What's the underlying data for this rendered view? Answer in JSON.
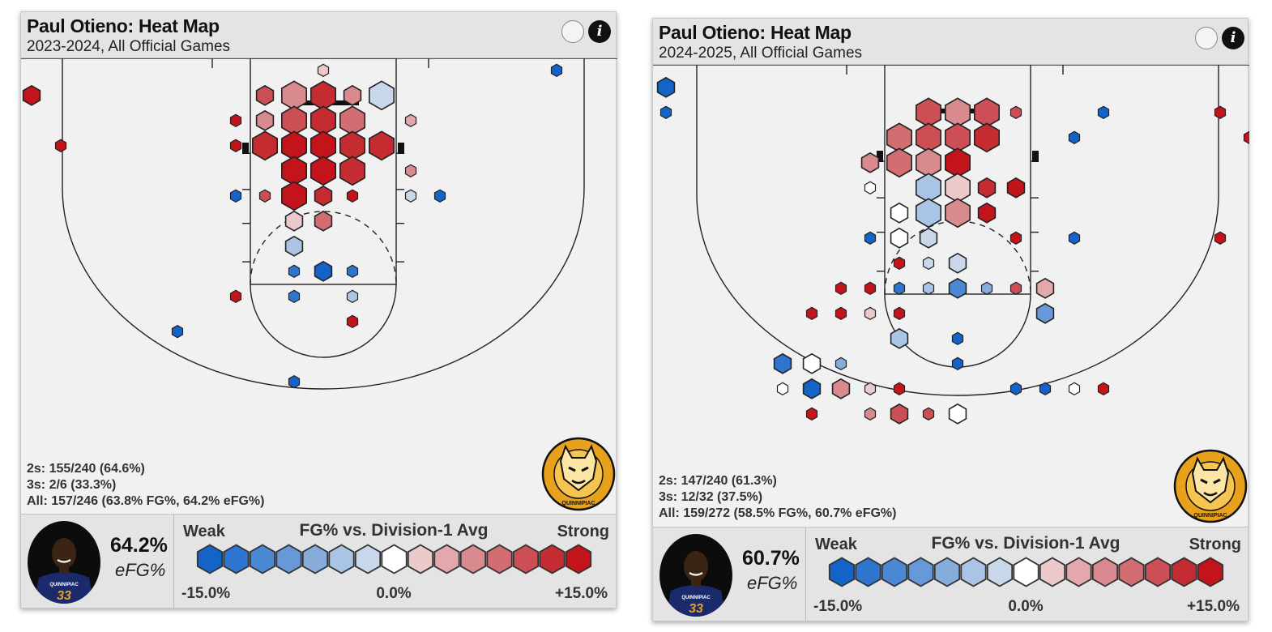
{
  "colors": {
    "scale": [
      "#1463c8",
      "#2d75cf",
      "#4a88d4",
      "#6799d8",
      "#86acdc",
      "#a9c4e4",
      "#c8d8ea",
      "#ffffff",
      "#ecc9cb",
      "#e3a8ac",
      "#d98a8f",
      "#d26d72",
      "#cc4f55",
      "#c52c32",
      "#c4141b"
    ],
    "accent_gold": "#e8a11c",
    "jersey_navy": "#1b2a6b"
  },
  "icons": [
    "help-circle-icon",
    "info-icon",
    "team-logo",
    "player-avatar"
  ],
  "panels": [
    {
      "title": "Paul Otieno: Heat Map",
      "subtitle": "2023-2024, All Official Games",
      "stats": [
        "2s: 155/240 (64.6%)",
        "3s: 2/6 (33.3%)",
        "All: 157/246 (63.8% FG%, 64.2% eFG%)"
      ],
      "efg_value": "64.2%",
      "efg_label": "eFG%",
      "legend": {
        "weak": "Weak",
        "title": "FG% vs. Division-1 Avg",
        "strong": "Strong",
        "min": "-15.0%",
        "mid": "0.0%",
        "max": "+15.0%"
      },
      "jersey_text": "QUINNIPIAC",
      "jersey_number": "33",
      "logo_text": "QUINNIPIAC"
    },
    {
      "title": "Paul Otieno: Heat Map",
      "subtitle": "2024-2025, All Official Games",
      "stats": [
        "2s: 147/240 (61.3%)",
        "3s: 12/32 (37.5%)",
        "All: 159/272 (58.5% FG%, 60.7% eFG%)"
      ],
      "efg_value": "60.7%",
      "efg_label": "eFG%",
      "legend": {
        "weak": "Weak",
        "title": "FG% vs. Division-1 Avg",
        "strong": "Strong",
        "min": "-15.0%",
        "mid": "0.0%",
        "max": "+15.0%"
      },
      "jersey_text": "QUINNIPIAC",
      "jersey_number": "33",
      "logo_text": "QUINNIPIAC"
    }
  ],
  "chart_data": [
    {
      "type": "heatmap",
      "title": "Paul Otieno: Heat Map",
      "subtitle": "2023-2024, All Official Games",
      "color_scale": {
        "min": -15.0,
        "mid": 0.0,
        "max": 15.0,
        "label": "FG% vs. Division-1 Avg"
      },
      "summary": {
        "twos": "155/240 (64.6%)",
        "threes": "2/6 (33.3%)",
        "all": "157/246 (63.8% FG%, 64.2% eFG%)",
        "efg": "64.2%"
      },
      "hexes": [
        {
          "x": 0,
          "y": 46,
          "size": 1,
          "level": 8
        },
        {
          "x": -2,
          "y": 41,
          "size": 2,
          "level": 12
        },
        {
          "x": -1,
          "y": 41,
          "size": 3,
          "level": 10
        },
        {
          "x": 0,
          "y": 41,
          "size": 3,
          "level": 13
        },
        {
          "x": 1,
          "y": 41,
          "size": 2,
          "level": 10
        },
        {
          "x": 2,
          "y": 41,
          "size": 3,
          "level": 6
        },
        {
          "x": -3,
          "y": 36,
          "size": 1,
          "level": 14
        },
        {
          "x": 3,
          "y": 36,
          "size": 1,
          "level": 9
        },
        {
          "x": -2,
          "y": 36,
          "size": 2,
          "level": 10
        },
        {
          "x": -1,
          "y": 36,
          "size": 3,
          "level": 12
        },
        {
          "x": 0,
          "y": 36,
          "size": 3,
          "level": 13
        },
        {
          "x": 1,
          "y": 36,
          "size": 3,
          "level": 11
        },
        {
          "x": -3,
          "y": 31,
          "size": 1,
          "level": 14
        },
        {
          "x": -2,
          "y": 31,
          "size": 3,
          "level": 13
        },
        {
          "x": -1,
          "y": 31,
          "size": 3,
          "level": 14
        },
        {
          "x": 0,
          "y": 31,
          "size": 3,
          "level": 14
        },
        {
          "x": 1,
          "y": 31,
          "size": 3,
          "level": 13
        },
        {
          "x": 2,
          "y": 31,
          "size": 3,
          "level": 13
        },
        {
          "x": 3,
          "y": 26,
          "size": 1,
          "level": 10
        },
        {
          "x": -1,
          "y": 26,
          "size": 3,
          "level": 14
        },
        {
          "x": 0,
          "y": 26,
          "size": 3,
          "level": 14
        },
        {
          "x": 1,
          "y": 26,
          "size": 3,
          "level": 13
        },
        {
          "x": -3,
          "y": 21,
          "size": 1,
          "level": 0
        },
        {
          "x": -2,
          "y": 21,
          "size": 1,
          "level": 12
        },
        {
          "x": -1,
          "y": 21,
          "size": 3,
          "level": 14
        },
        {
          "x": 0,
          "y": 21,
          "size": 2,
          "level": 13
        },
        {
          "x": 1,
          "y": 21,
          "size": 1,
          "level": 14
        },
        {
          "x": 3,
          "y": 21,
          "size": 1,
          "level": 6
        },
        {
          "x": -1,
          "y": 16,
          "size": 2,
          "level": 8
        },
        {
          "x": 0,
          "y": 16,
          "size": 2,
          "level": 11
        },
        {
          "x": -1,
          "y": 11,
          "size": 2,
          "level": 5
        },
        {
          "x": -1,
          "y": 6,
          "size": 1,
          "level": 1
        },
        {
          "x": 0,
          "y": 6,
          "size": 2,
          "level": 0
        },
        {
          "x": 1,
          "y": 6,
          "size": 1,
          "level": 1
        },
        {
          "x": -1,
          "y": 1,
          "size": 1,
          "level": 1
        },
        {
          "x": 1,
          "y": 1,
          "size": 1,
          "level": 5
        },
        {
          "x": 1,
          "y": -4,
          "size": 1,
          "level": 14
        },
        {
          "x": -3,
          "y": 1,
          "size": 1,
          "level": 14
        },
        {
          "x": 4,
          "y": 21,
          "size": 1,
          "level": 0
        },
        {
          "x": -10,
          "y": 41,
          "size": 2,
          "level": 14
        },
        {
          "x": -9,
          "y": 31,
          "size": 1,
          "level": 14
        },
        {
          "x": 8,
          "y": 46,
          "size": 1,
          "level": 0
        },
        {
          "x": -5,
          "y": -6,
          "size": 1,
          "level": 0
        },
        {
          "x": -1,
          "y": -16,
          "size": 1,
          "level": 0
        }
      ]
    },
    {
      "type": "heatmap",
      "title": "Paul Otieno: Heat Map",
      "subtitle": "2024-2025, All Official Games",
      "color_scale": {
        "min": -15.0,
        "mid": 0.0,
        "max": 15.0,
        "label": "FG% vs. Division-1 Avg"
      },
      "summary": {
        "twos": "147/240 (61.3%)",
        "threes": "12/32 (37.5%)",
        "all": "159/272 (58.5% FG%, 60.7% eFG%)",
        "efg": "60.7%"
      },
      "hexes": [
        {
          "x": -1,
          "y": 41,
          "size": 3,
          "level": 12
        },
        {
          "x": 0,
          "y": 41,
          "size": 3,
          "level": 10
        },
        {
          "x": 1,
          "y": 41,
          "size": 3,
          "level": 12
        },
        {
          "x": 2,
          "y": 41,
          "size": 1,
          "level": 12
        },
        {
          "x": -2,
          "y": 36,
          "size": 3,
          "level": 11
        },
        {
          "x": -1,
          "y": 36,
          "size": 3,
          "level": 12
        },
        {
          "x": 0,
          "y": 36,
          "size": 3,
          "level": 12
        },
        {
          "x": 1,
          "y": 36,
          "size": 3,
          "level": 13
        },
        {
          "x": -3,
          "y": 31,
          "size": 2,
          "level": 10
        },
        {
          "x": -2,
          "y": 31,
          "size": 3,
          "level": 11
        },
        {
          "x": -1,
          "y": 31,
          "size": 3,
          "level": 10
        },
        {
          "x": 0,
          "y": 31,
          "size": 3,
          "level": 14
        },
        {
          "x": -3,
          "y": 26,
          "size": 1,
          "level": 7
        },
        {
          "x": -1,
          "y": 26,
          "size": 3,
          "level": 5
        },
        {
          "x": 0,
          "y": 26,
          "size": 3,
          "level": 8
        },
        {
          "x": 1,
          "y": 26,
          "size": 2,
          "level": 13
        },
        {
          "x": 2,
          "y": 26,
          "size": 2,
          "level": 14
        },
        {
          "x": -2,
          "y": 21,
          "size": 2,
          "level": 7
        },
        {
          "x": -1,
          "y": 21,
          "size": 3,
          "level": 5
        },
        {
          "x": 0,
          "y": 21,
          "size": 3,
          "level": 10
        },
        {
          "x": 1,
          "y": 21,
          "size": 2,
          "level": 14
        },
        {
          "x": -3,
          "y": 16,
          "size": 1,
          "level": 0
        },
        {
          "x": -2,
          "y": 16,
          "size": 2,
          "level": 7
        },
        {
          "x": -1,
          "y": 16,
          "size": 2,
          "level": 6
        },
        {
          "x": 2,
          "y": 16,
          "size": 1,
          "level": 14
        },
        {
          "x": -2,
          "y": 11,
          "size": 1,
          "level": 14
        },
        {
          "x": -1,
          "y": 11,
          "size": 1,
          "level": 6
        },
        {
          "x": 0,
          "y": 11,
          "size": 2,
          "level": 6
        },
        {
          "x": -4,
          "y": 6,
          "size": 1,
          "level": 14
        },
        {
          "x": -3,
          "y": 6,
          "size": 1,
          "level": 14
        },
        {
          "x": -2,
          "y": 6,
          "size": 1,
          "level": 1
        },
        {
          "x": -1,
          "y": 6,
          "size": 1,
          "level": 5
        },
        {
          "x": 0,
          "y": 6,
          "size": 2,
          "level": 2
        },
        {
          "x": 1,
          "y": 6,
          "size": 1,
          "level": 4
        },
        {
          "x": 2,
          "y": 6,
          "size": 1,
          "level": 12
        },
        {
          "x": 3,
          "y": 6,
          "size": 2,
          "level": 9
        },
        {
          "x": -5,
          "y": 1,
          "size": 1,
          "level": 14
        },
        {
          "x": -4,
          "y": 1,
          "size": 1,
          "level": 14
        },
        {
          "x": -3,
          "y": 1,
          "size": 1,
          "level": 8
        },
        {
          "x": -2,
          "y": 1,
          "size": 1,
          "level": 14
        },
        {
          "x": 3,
          "y": 1,
          "size": 2,
          "level": 3
        },
        {
          "x": -2,
          "y": -4,
          "size": 2,
          "level": 5
        },
        {
          "x": 0,
          "y": -4,
          "size": 1,
          "level": 0
        },
        {
          "x": -6,
          "y": -9,
          "size": 2,
          "level": 1
        },
        {
          "x": -5,
          "y": -9,
          "size": 2,
          "level": 7
        },
        {
          "x": -4,
          "y": -9,
          "size": 1,
          "level": 4
        },
        {
          "x": 0,
          "y": -9,
          "size": 1,
          "level": 0
        },
        {
          "x": -6,
          "y": -14,
          "size": 1,
          "level": 7
        },
        {
          "x": -5,
          "y": -14,
          "size": 2,
          "level": 0
        },
        {
          "x": -4,
          "y": -14,
          "size": 2,
          "level": 10
        },
        {
          "x": -3,
          "y": -14,
          "size": 1,
          "level": 8
        },
        {
          "x": -2,
          "y": -14,
          "size": 1,
          "level": 14
        },
        {
          "x": 2,
          "y": -14,
          "size": 1,
          "level": 0
        },
        {
          "x": 3,
          "y": -14,
          "size": 1,
          "level": 0
        },
        {
          "x": 4,
          "y": -14,
          "size": 1,
          "level": 7
        },
        {
          "x": 5,
          "y": -14,
          "size": 1,
          "level": 14
        },
        {
          "x": -5,
          "y": -19,
          "size": 1,
          "level": 14
        },
        {
          "x": -3,
          "y": -19,
          "size": 1,
          "level": 10
        },
        {
          "x": -2,
          "y": -19,
          "size": 2,
          "level": 12
        },
        {
          "x": -1,
          "y": -19,
          "size": 1,
          "level": 12
        },
        {
          "x": 0,
          "y": -19,
          "size": 2,
          "level": 7
        },
        {
          "x": -10,
          "y": 46,
          "size": 2,
          "level": 0
        },
        {
          "x": -10,
          "y": 41,
          "size": 1,
          "level": 0
        },
        {
          "x": 5,
          "y": 41,
          "size": 1,
          "level": 0
        },
        {
          "x": 4,
          "y": 36,
          "size": 1,
          "level": 0
        },
        {
          "x": 4,
          "y": 16,
          "size": 1,
          "level": 0
        },
        {
          "x": 9,
          "y": 41,
          "size": 1,
          "level": 14
        },
        {
          "x": 10,
          "y": 36,
          "size": 1,
          "level": 14
        },
        {
          "x": 9,
          "y": 16,
          "size": 1,
          "level": 14
        }
      ]
    }
  ]
}
